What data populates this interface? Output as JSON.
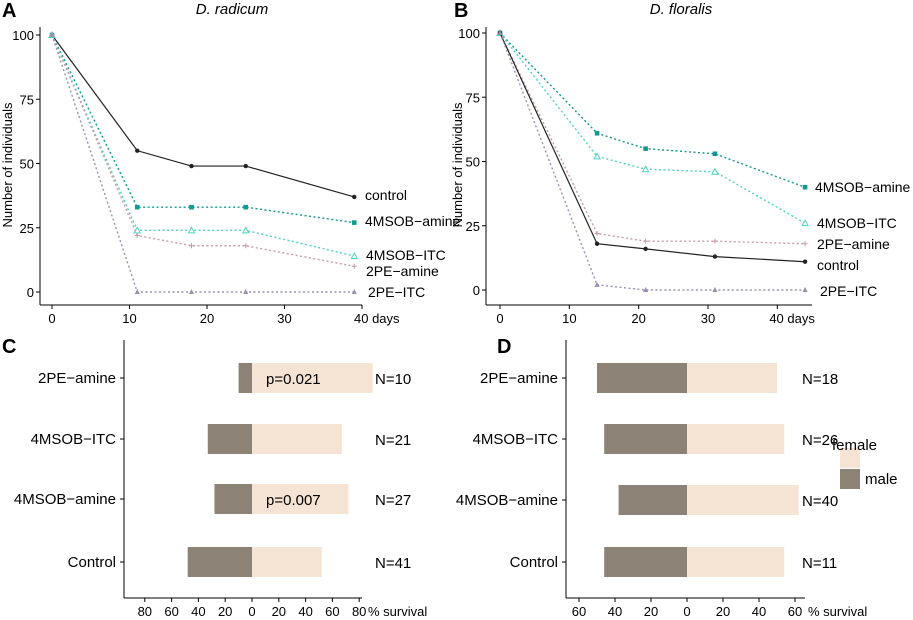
{
  "panel_letters": [
    "A",
    "B",
    "C",
    "D"
  ],
  "chart_data": [
    {
      "type": "line",
      "panel": "A",
      "title": "D. radicum",
      "ylabel": "Number of individuals",
      "xlabel": "days",
      "x_unit_label": "40 days",
      "xlim": [
        0,
        40
      ],
      "ylim": [
        0,
        100
      ],
      "xticks": [
        0,
        10,
        20,
        30
      ],
      "yticks": [
        0,
        25,
        50,
        75,
        100
      ],
      "x": [
        0,
        11,
        18,
        25,
        39
      ],
      "series": [
        {
          "name": "control",
          "color": "#222222",
          "marker": "dot",
          "values": [
            100,
            55,
            49,
            49,
            37
          ]
        },
        {
          "name": "4MSOB−amine",
          "color": "#10998f",
          "marker": "square",
          "values": [
            100,
            33,
            33,
            33,
            27
          ]
        },
        {
          "name": "4MSOB−ITC",
          "color": "#4fd2c0",
          "marker": "triangle-open",
          "values": [
            100,
            24,
            24,
            24,
            14
          ]
        },
        {
          "name": "2PE−amine",
          "color": "#c79aa6",
          "marker": "plus",
          "values": [
            100,
            22,
            18,
            18,
            10
          ]
        },
        {
          "name": "2PE−ITC",
          "color": "#9a8fb0",
          "marker": "triangle",
          "values": [
            100,
            0,
            0,
            0,
            0
          ]
        }
      ]
    },
    {
      "type": "line",
      "panel": "B",
      "title": "D. floralis",
      "ylabel": "Number of individuals",
      "xlabel": "days",
      "x_unit_label": "40 days",
      "xlim": [
        0,
        45
      ],
      "ylim": [
        0,
        100
      ],
      "xticks": [
        0,
        10,
        20,
        30
      ],
      "yticks": [
        0,
        25,
        50,
        75,
        100
      ],
      "x": [
        0,
        14,
        21,
        31,
        44
      ],
      "series": [
        {
          "name": "4MSOB−amine",
          "color": "#10998f",
          "marker": "square",
          "values": [
            100,
            61,
            55,
            53,
            40
          ]
        },
        {
          "name": "4MSOB−ITC",
          "color": "#4fd2c0",
          "marker": "triangle-open",
          "values": [
            100,
            52,
            47,
            46,
            26
          ]
        },
        {
          "name": "2PE−amine",
          "color": "#c79aa6",
          "marker": "plus",
          "values": [
            100,
            22,
            19,
            19,
            18
          ]
        },
        {
          "name": "control",
          "color": "#222222",
          "marker": "dot",
          "values": [
            100,
            18,
            16,
            13,
            11
          ]
        },
        {
          "name": "2PE−ITC",
          "color": "#9a8fb0",
          "marker": "triangle",
          "values": [
            100,
            2,
            0,
            0,
            0
          ]
        }
      ]
    },
    {
      "type": "bar",
      "orientation": "horizontal-diverging",
      "panel": "C",
      "xlabel": "% survival",
      "xlim": [
        -90,
        90
      ],
      "xticks": [
        -80,
        -60,
        -40,
        -20,
        0,
        20,
        40,
        60,
        80
      ],
      "xtick_labels": [
        "80",
        "60",
        "40",
        "20",
        "0",
        "20",
        "40",
        "60",
        "80"
      ],
      "categories": [
        "2PE−amine",
        "4MSOB−ITC",
        "4MSOB−amine",
        "Control"
      ],
      "series": [
        {
          "name": "male",
          "color": "#8c8276",
          "values": [
            10,
            33,
            28,
            48
          ]
        },
        {
          "name": "female",
          "color": "#f5e4d3",
          "values": [
            90,
            67,
            72,
            52
          ]
        }
      ],
      "n_labels": [
        "N=10",
        "N=21",
        "N=27",
        "N=41"
      ],
      "p_labels": [
        "p=0.021",
        "",
        "p=0.007",
        ""
      ]
    },
    {
      "type": "bar",
      "orientation": "horizontal-diverging",
      "panel": "D",
      "xlabel": "% survival",
      "xlim": [
        -70,
        70
      ],
      "xticks": [
        -60,
        -40,
        -20,
        0,
        20,
        40,
        60
      ],
      "xtick_labels": [
        "60",
        "40",
        "20",
        "0",
        "20",
        "40",
        "60"
      ],
      "categories": [
        "2PE−amine",
        "4MSOB−ITC",
        "4MSOB−amine",
        "Control"
      ],
      "series": [
        {
          "name": "male",
          "color": "#8c8276",
          "values": [
            50,
            46,
            38,
            46
          ]
        },
        {
          "name": "female",
          "color": "#f5e4d3",
          "values": [
            50,
            54,
            62,
            54
          ]
        }
      ],
      "n_labels": [
        "N=18",
        "N=26",
        "N=40",
        "N=11"
      ],
      "legend": {
        "position": "right",
        "entries": [
          "female",
          "male"
        ]
      }
    }
  ]
}
